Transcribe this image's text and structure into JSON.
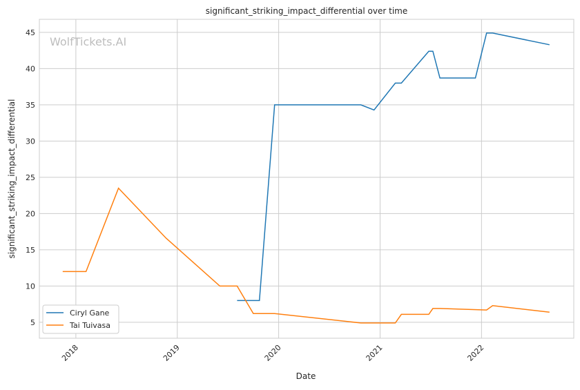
{
  "chart_data": {
    "type": "line",
    "title": "significant_striking_impact_differential over time",
    "xlabel": "Date",
    "ylabel": "significant_striking_impact_differential",
    "watermark": "WolfTickets.AI",
    "xlim": [
      2017.64,
      2022.91
    ],
    "ylim": [
      2.8,
      46.8
    ],
    "x_ticks": [
      2018,
      2019,
      2020,
      2021,
      2022
    ],
    "x_tick_labels": [
      "2018",
      "2019",
      "2020",
      "2021",
      "2022"
    ],
    "y_ticks": [
      5,
      10,
      15,
      20,
      25,
      30,
      35,
      40,
      45
    ],
    "y_tick_labels": [
      "5",
      "10",
      "15",
      "20",
      "25",
      "30",
      "35",
      "40",
      "45"
    ],
    "grid": true,
    "legend_position": "lower-left",
    "series": [
      {
        "name": "Ciryl Gane",
        "color": "#1f77b4",
        "x": [
          2019.59,
          2019.81,
          2019.96,
          2020.81,
          2020.94,
          2021.15,
          2021.21,
          2021.48,
          2021.52,
          2021.59,
          2021.94,
          2022.05,
          2022.11,
          2022.67
        ],
        "y": [
          8.0,
          8.0,
          35.0,
          35.0,
          34.3,
          38.0,
          38.0,
          42.4,
          42.4,
          38.7,
          38.7,
          44.9,
          44.9,
          43.3
        ]
      },
      {
        "name": "Tai Tuivasa",
        "color": "#ff7f0e",
        "x": [
          2017.87,
          2018.1,
          2018.42,
          2018.89,
          2019.42,
          2019.59,
          2019.75,
          2019.96,
          2020.81,
          2021.15,
          2021.21,
          2021.48,
          2021.52,
          2021.59,
          2022.05,
          2022.11,
          2022.67
        ],
        "y": [
          12.0,
          12.0,
          23.5,
          16.6,
          10.0,
          10.0,
          6.2,
          6.2,
          4.9,
          4.9,
          6.1,
          6.1,
          6.9,
          6.9,
          6.7,
          7.3,
          6.4
        ]
      }
    ]
  }
}
